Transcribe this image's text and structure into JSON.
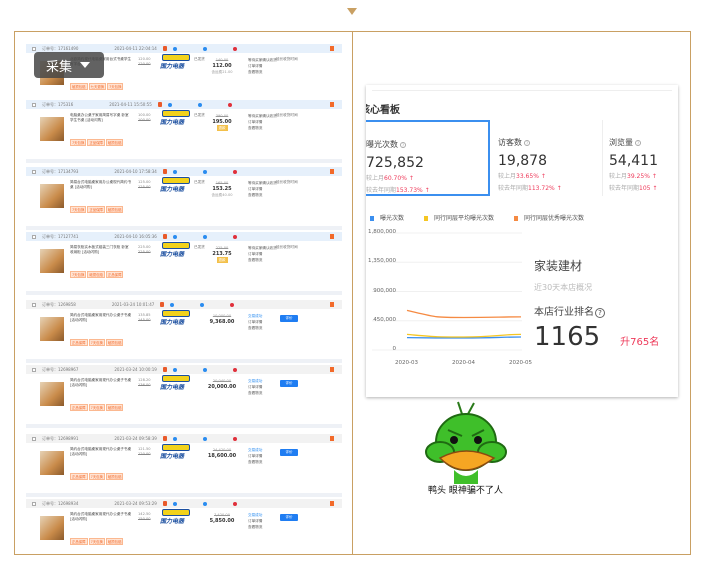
{
  "collect_button": {
    "label": "采集"
  },
  "orders": [
    {
      "no": "订单号：17161490",
      "date": "2021-04-11 22:04:14",
      "title": "北欧简约现代电脑桌家用台式书桌学生写字台",
      "tags": [
        "破损包赔",
        "七天退换",
        "7天包换"
      ],
      "unit": "120.00",
      "unit_orig": "120.00",
      "ship": "已发货",
      "orig": "140.00",
      "total": "112.00",
      "fee": "含运费21.00",
      "status": [
        "等待买家确认收货",
        "订单详情",
        "查看物流"
      ],
      "extra": "延长收货时间",
      "style": "blue"
    },
    {
      "no": "订单号：175316",
      "date": "2021-04-11 15:50:55",
      "title": "电脑桌办公桌子家用简易写字桌 卧室学生书桌 [活动闪购]",
      "tags": [
        "7天包换",
        "正品保障",
        "破损包赔"
      ],
      "unit": "100.00",
      "unit_orig": "100.00",
      "ship": "已发货",
      "orig": "390.00",
      "total": "195.00",
      "badge": "退款",
      "status": [
        "等待买家确认收货",
        "订单详情",
        "查看物流"
      ],
      "extra": "延长收货时间",
      "style": "blue"
    },
    {
      "no": "订单号：17134793",
      "date": "2021-04-10 17:58:34",
      "title": "简易台式电脑桌家用办公桌现代简约书桌 [活动闪购]",
      "tags": [
        "7天包换",
        "正品保障",
        "破损包赔"
      ],
      "unit": "125.00",
      "unit_orig": "125.00",
      "ship": "已发货",
      "orig": "165.00",
      "total": "153.25",
      "fee": "含运费40.00",
      "status": [
        "等待买家确认收货",
        "订单详情",
        "查看物流"
      ],
      "extra": "延长收货时间",
      "style": "blue"
    },
    {
      "no": "订单号：17127741",
      "date": "2021-04-10 16:05:36",
      "title": "简易衣柜实木板式组装三门衣柜 卧室收纳柜 [活动闪购]",
      "tags": [
        "7天包换",
        "破损包赔",
        "正品保障"
      ],
      "unit": "225.00",
      "unit_orig": "225.00",
      "ship": "已发货",
      "orig": "225.00",
      "total": "213.75",
      "badge": "退款",
      "status": [
        "等待买家确认收货",
        "订单详情",
        "查看物流"
      ],
      "extra": "延长收货时间",
      "style": "blue"
    },
    {
      "no": "订单号：1269858",
      "date": "2021-03-24 10:01:47",
      "title": "简约台式电脑桌家用现代办公桌子书桌 [活动闪购]",
      "tags": [
        "正品保障",
        "7天包换",
        "破损包赔"
      ],
      "unit": "135.85",
      "unit_orig": "145.00",
      "orig": "10,000.00",
      "total": "9,368.00",
      "status": [
        "交易成功",
        "订单详情",
        "查看物流"
      ],
      "button": "评价",
      "style": "gray"
    },
    {
      "no": "订单号：12698967",
      "date": "2021-03-24 10:00:19",
      "title": "简约台式电脑桌家用现代办公桌子书桌 [活动闪购]",
      "tags": [
        "正品保障",
        "7天包换",
        "破损包赔"
      ],
      "unit": "128.20",
      "unit_orig": "136.00",
      "orig": "20,040.00",
      "total": "20,000.00",
      "status": [
        "交易成功",
        "订单详情",
        "查看物流"
      ],
      "button": "评价",
      "style": "gray"
    },
    {
      "no": "订单号：12698991",
      "date": "2021-03-24 09:58:39",
      "title": "简约台式电脑桌家用现代办公桌子书桌 [活动闪购]",
      "tags": [
        "正品保障",
        "7天包换",
        "破损包赔"
      ],
      "unit": "121.50",
      "unit_orig": "120.00",
      "orig": "24,420.00",
      "total": "18,600.00",
      "status": [
        "交易成功",
        "订单详情",
        "查看物流"
      ],
      "button": "评价",
      "style": "gray"
    },
    {
      "no": "订单号：12698934",
      "date": "2021-03-24 09:53:29",
      "title": "简约台式电脑桌家用现代办公桌子书桌 [活动闪购]",
      "tags": [
        "正品保障",
        "7天包换",
        "破损包赔"
      ],
      "unit": "142.50",
      "unit_orig": "150.00",
      "orig": "7,420.00",
      "total": "5,850.00",
      "status": [
        "交易成功",
        "订单详情",
        "查看物流"
      ],
      "button": "评价",
      "style": "gray"
    }
  ],
  "logo_text": "国力电器",
  "dashboard": {
    "title": "核心看板",
    "kpis": [
      {
        "label": "曝光次数",
        "value": "725,852",
        "mom_label": "较上月",
        "mom": "60.70%",
        "yoy_label": "较去年同期",
        "yoy": "153.73%"
      },
      {
        "label": "访客数",
        "value": "19,878",
        "mom_label": "较上月",
        "mom": "33.65%",
        "yoy_label": "较去年同期",
        "yoy": "113.72%"
      },
      {
        "label": "浏览量",
        "value": "54,411",
        "mom_label": "较上月",
        "mom": "39.25%",
        "yoy_label": "较去年同期",
        "yoy": "105"
      }
    ],
    "industry": {
      "name": "家装建材",
      "subtitle": "近30天本店概况",
      "rank_label": "本店行业排名",
      "rank": "1165",
      "change": "升765名"
    }
  },
  "chart_data": {
    "type": "line",
    "x": [
      "2020-03",
      "2020-04",
      "2020-05"
    ],
    "yticks": [
      "1,800,000",
      "1,350,000",
      "900,000",
      "450,000",
      "0"
    ],
    "ylim": [
      0,
      1800000
    ],
    "grid": true,
    "legend_placement": "top-left",
    "series": [
      {
        "name": "曝光次数",
        "color": "#3b8fef",
        "values": [
          190000,
          185000,
          200000
        ]
      },
      {
        "name": "同行同层平均曝光次数",
        "color": "#f5c623",
        "values": [
          240000,
          200000,
          240000
        ]
      },
      {
        "name": "同行同层优秀曝光次数",
        "color": "#f58a42",
        "values": [
          610000,
          500000,
          510000
        ]
      }
    ]
  },
  "meme": {
    "caption": "鸭头 眼神骗不了人"
  }
}
